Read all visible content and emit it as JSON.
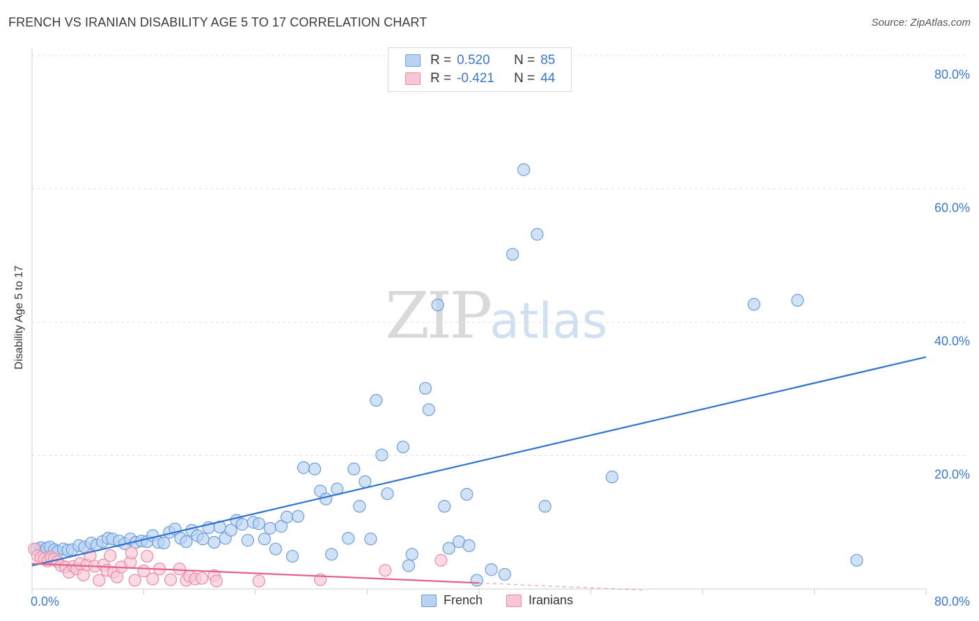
{
  "title": "FRENCH VS IRANIAN DISABILITY AGE 5 TO 17 CORRELATION CHART",
  "source": "Source: ZipAtlas.com",
  "watermark": {
    "zip": "ZIP",
    "atlas": "atlas"
  },
  "legend": {
    "rows": [
      {
        "r_label": "R =",
        "r_value": "0.520",
        "n_label": "N =",
        "n_value": "85",
        "color": "#3b78c9"
      },
      {
        "r_label": "R =",
        "r_value": "-0.421",
        "n_label": "N =",
        "n_value": "44",
        "color": "#e8769a"
      }
    ]
  },
  "bottom_legend": [
    "French",
    "Iranians"
  ],
  "chart_data": {
    "type": "scatter",
    "title": "FRENCH VS IRANIAN DISABILITY AGE 5 TO 17 CORRELATION CHART",
    "xlabel": "",
    "ylabel": "Disability Age 5 to 17",
    "xlim": [
      0,
      80
    ],
    "ylim": [
      0,
      80
    ],
    "x_tick_labels": [
      "0.0%",
      "80.0%"
    ],
    "y_ticks": [
      20,
      40,
      60,
      80
    ],
    "y_tick_labels": [
      "20.0%",
      "40.0%",
      "60.0%",
      "80.0%"
    ],
    "series": [
      {
        "name": "French",
        "fill": "#b9d2f2",
        "stroke": "#6a9edc",
        "trend": {
          "x": [
            0,
            80
          ],
          "y": [
            3.5,
            34.8
          ],
          "color": "#2f72cf"
        },
        "points": [
          [
            0.4,
            6.0
          ],
          [
            0.8,
            6.2
          ],
          [
            1.0,
            5.5
          ],
          [
            1.3,
            6.1
          ],
          [
            1.6,
            6.3
          ],
          [
            2.0,
            5.9
          ],
          [
            2.3,
            5.6
          ],
          [
            2.8,
            6.0
          ],
          [
            3.2,
            5.8
          ],
          [
            3.6,
            5.9
          ],
          [
            4.2,
            6.5
          ],
          [
            4.7,
            6.3
          ],
          [
            5.3,
            6.9
          ],
          [
            5.8,
            6.6
          ],
          [
            6.3,
            7.1
          ],
          [
            6.8,
            7.6
          ],
          [
            7.2,
            7.5
          ],
          [
            7.8,
            7.2
          ],
          [
            8.3,
            6.8
          ],
          [
            8.8,
            7.5
          ],
          [
            9.3,
            7.0
          ],
          [
            9.8,
            7.2
          ],
          [
            10.3,
            7.1
          ],
          [
            10.8,
            8.0
          ],
          [
            11.3,
            7.0
          ],
          [
            11.8,
            6.9
          ],
          [
            12.3,
            8.5
          ],
          [
            12.8,
            9.0
          ],
          [
            13.3,
            7.6
          ],
          [
            13.8,
            7.1
          ],
          [
            14.3,
            8.8
          ],
          [
            14.8,
            8.0
          ],
          [
            15.3,
            7.5
          ],
          [
            15.8,
            9.2
          ],
          [
            16.3,
            7.0
          ],
          [
            16.8,
            9.3
          ],
          [
            17.3,
            7.6
          ],
          [
            17.8,
            8.8
          ],
          [
            18.3,
            10.3
          ],
          [
            18.8,
            9.7
          ],
          [
            19.3,
            7.3
          ],
          [
            19.8,
            10.0
          ],
          [
            20.3,
            9.8
          ],
          [
            20.8,
            7.5
          ],
          [
            21.3,
            9.1
          ],
          [
            21.8,
            6.0
          ],
          [
            22.3,
            9.4
          ],
          [
            22.8,
            10.8
          ],
          [
            23.3,
            4.9
          ],
          [
            23.8,
            10.9
          ],
          [
            24.3,
            18.2
          ],
          [
            25.3,
            18.0
          ],
          [
            25.8,
            14.7
          ],
          [
            26.3,
            13.5
          ],
          [
            26.8,
            5.2
          ],
          [
            27.3,
            15.0
          ],
          [
            28.3,
            7.6
          ],
          [
            28.8,
            18.0
          ],
          [
            29.3,
            12.4
          ],
          [
            29.8,
            16.1
          ],
          [
            30.3,
            7.5
          ],
          [
            30.8,
            28.3
          ],
          [
            31.3,
            20.1
          ],
          [
            31.8,
            14.3
          ],
          [
            33.2,
            21.3
          ],
          [
            33.7,
            3.5
          ],
          [
            34.0,
            5.2
          ],
          [
            35.2,
            30.1
          ],
          [
            35.5,
            26.9
          ],
          [
            36.3,
            42.6
          ],
          [
            36.9,
            12.4
          ],
          [
            37.3,
            6.1
          ],
          [
            38.2,
            7.1
          ],
          [
            38.9,
            14.2
          ],
          [
            39.1,
            6.5
          ],
          [
            39.8,
            1.3
          ],
          [
            41.1,
            2.9
          ],
          [
            42.3,
            2.2
          ],
          [
            43.0,
            50.2
          ],
          [
            44.0,
            62.9
          ],
          [
            45.2,
            53.2
          ],
          [
            45.9,
            12.4
          ],
          [
            51.9,
            16.8
          ],
          [
            64.6,
            42.7
          ],
          [
            68.5,
            43.3
          ],
          [
            73.8,
            4.3
          ]
        ]
      },
      {
        "name": "Iranians",
        "fill": "#f8c7d6",
        "stroke": "#e98aa8",
        "trend": {
          "x": [
            0,
            40
          ],
          "y": [
            3.8,
            0.9
          ],
          "dash_x": [
            40,
            55
          ],
          "dash_y": [
            0.9,
            -0.2
          ],
          "color": "#e5608a"
        },
        "points": [
          [
            0.2,
            6.0
          ],
          [
            0.5,
            5.0
          ],
          [
            0.8,
            4.7
          ],
          [
            1.1,
            4.5
          ],
          [
            1.4,
            4.2
          ],
          [
            1.7,
            4.8
          ],
          [
            2.0,
            4.5
          ],
          [
            2.3,
            4.1
          ],
          [
            2.6,
            3.5
          ],
          [
            3.0,
            3.3
          ],
          [
            3.3,
            2.5
          ],
          [
            3.7,
            3.4
          ],
          [
            4.0,
            3.0
          ],
          [
            4.3,
            3.8
          ],
          [
            4.6,
            2.1
          ],
          [
            4.9,
            3.6
          ],
          [
            5.2,
            5.0
          ],
          [
            5.6,
            3.4
          ],
          [
            6.0,
            1.3
          ],
          [
            6.4,
            3.6
          ],
          [
            6.7,
            2.8
          ],
          [
            7.0,
            5.0
          ],
          [
            7.3,
            2.5
          ],
          [
            7.6,
            1.8
          ],
          [
            8.0,
            3.3
          ],
          [
            8.8,
            4.0
          ],
          [
            8.9,
            5.4
          ],
          [
            9.2,
            1.3
          ],
          [
            10.0,
            2.7
          ],
          [
            10.3,
            4.9
          ],
          [
            10.8,
            1.5
          ],
          [
            11.4,
            3.0
          ],
          [
            12.4,
            1.4
          ],
          [
            13.2,
            3.0
          ],
          [
            13.8,
            1.3
          ],
          [
            14.1,
            1.9
          ],
          [
            14.6,
            1.5
          ],
          [
            15.2,
            1.6
          ],
          [
            16.3,
            2.0
          ],
          [
            16.5,
            1.2
          ],
          [
            20.3,
            1.2
          ],
          [
            25.8,
            1.4
          ],
          [
            31.6,
            2.8
          ],
          [
            36.6,
            4.3
          ]
        ]
      }
    ]
  }
}
